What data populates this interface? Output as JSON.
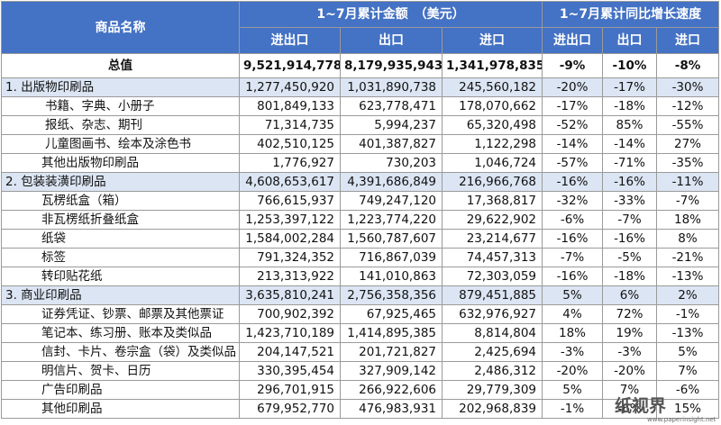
{
  "header": {
    "col_name": "商品名称",
    "group_amount": "1~7月累计金额　（美元）",
    "group_growth": "1~7月累计同比增长速度",
    "sub": [
      "进出口",
      "出口",
      "进口",
      "进出口",
      "出口",
      "进口"
    ]
  },
  "rows": [
    {
      "level": "total",
      "name": "总值",
      "v1": "9,521,914,778",
      "v2": "8,179,935,943",
      "v3": "1,341,978,835",
      "g1": "-9%",
      "g2": "-10%",
      "g3": "-8%"
    },
    {
      "level": "group",
      "name": "1. 出版物印刷品",
      "v1": "1,277,450,920",
      "v2": "1,031,890,738",
      "v3": "245,560,182",
      "g1": "-20%",
      "g2": "-17%",
      "g3": "-30%"
    },
    {
      "level": "sub",
      "name": "书籍、字典、小册子",
      "v1": "801,849,133",
      "v2": "623,778,471",
      "v3": "178,070,662",
      "g1": "-17%",
      "g2": "-18%",
      "g3": "-12%"
    },
    {
      "level": "sub",
      "name": "报纸、杂志、期刊",
      "v1": "71,314,735",
      "v2": "5,994,237",
      "v3": "65,320,498",
      "g1": "-52%",
      "g2": "85%",
      "g3": "-55%"
    },
    {
      "level": "sub",
      "name": "儿童图画书、绘本及涂色书",
      "v1": "402,510,125",
      "v2": "401,387,827",
      "v3": "1,122,298",
      "g1": "-14%",
      "g2": "-14%",
      "g3": "27%"
    },
    {
      "level": "sub2",
      "name": "其他出版物印刷品",
      "v1": "1,776,927",
      "v2": "730,203",
      "v3": "1,046,724",
      "g1": "-57%",
      "g2": "-71%",
      "g3": "-35%"
    },
    {
      "level": "group",
      "name": "2. 包装装潢印刷品",
      "v1": "4,608,653,617",
      "v2": "4,391,686,849",
      "v3": "216,966,768",
      "g1": "-16%",
      "g2": "-16%",
      "g3": "-11%"
    },
    {
      "level": "sub2",
      "name": "瓦楞纸盒（箱）",
      "v1": "766,615,937",
      "v2": "749,247,120",
      "v3": "17,368,817",
      "g1": "-32%",
      "g2": "-33%",
      "g3": "-7%"
    },
    {
      "level": "sub2",
      "name": "非瓦楞纸折叠纸盒",
      "v1": "1,253,397,122",
      "v2": "1,223,774,220",
      "v3": "29,622,902",
      "g1": "-6%",
      "g2": "-7%",
      "g3": "18%"
    },
    {
      "level": "sub2",
      "name": "纸袋",
      "v1": "1,584,002,284",
      "v2": "1,560,787,607",
      "v3": "23,214,677",
      "g1": "-16%",
      "g2": "-16%",
      "g3": "8%"
    },
    {
      "level": "sub2",
      "name": "标签",
      "v1": "791,324,352",
      "v2": "716,867,039",
      "v3": "74,457,313",
      "g1": "-7%",
      "g2": "-5%",
      "g3": "-21%"
    },
    {
      "level": "sub2",
      "name": "转印贴花纸",
      "v1": "213,313,922",
      "v2": "141,010,863",
      "v3": "72,303,059",
      "g1": "-16%",
      "g2": "-18%",
      "g3": "-13%"
    },
    {
      "level": "group",
      "name": "3. 商业印刷品",
      "v1": "3,635,810,241",
      "v2": "2,756,358,356",
      "v3": "879,451,885",
      "g1": "5%",
      "g2": "6%",
      "g3": "2%"
    },
    {
      "level": "sub2",
      "name": "证券凭证、钞票、邮票及其他票证",
      "v1": "700,902,392",
      "v2": "67,925,465",
      "v3": "632,976,927",
      "g1": "4%",
      "g2": "72%",
      "g3": "-1%"
    },
    {
      "level": "sub2",
      "name": "笔记本、练习册、账本及类似品",
      "v1": "1,423,710,189",
      "v2": "1,414,895,385",
      "v3": "8,814,804",
      "g1": "18%",
      "g2": "19%",
      "g3": "-13%"
    },
    {
      "level": "sub2",
      "name": "信封、卡片、卷宗盒（袋）及类似品",
      "v1": "204,147,521",
      "v2": "201,721,827",
      "v3": "2,425,694",
      "g1": "-3%",
      "g2": "-3%",
      "g3": "5%"
    },
    {
      "level": "sub2",
      "name": "明信片、贺卡、日历",
      "v1": "330,395,454",
      "v2": "327,909,142",
      "v3": "2,486,312",
      "g1": "-20%",
      "g2": "-20%",
      "g3": "7%"
    },
    {
      "level": "sub2",
      "name": "广告印刷品",
      "v1": "296,701,915",
      "v2": "266,922,606",
      "v3": "29,779,309",
      "g1": "5%",
      "g2": "7%",
      "g3": "-6%"
    },
    {
      "level": "sub2",
      "name": "其他印刷品",
      "v1": "679,952,770",
      "v2": "476,983,931",
      "v3": "202,968,839",
      "g1": "-1%",
      "g2": "-6%",
      "g3": "15%"
    }
  ],
  "watermark": {
    "mark": "纸视界",
    "url": "www.paperinsight.net"
  }
}
